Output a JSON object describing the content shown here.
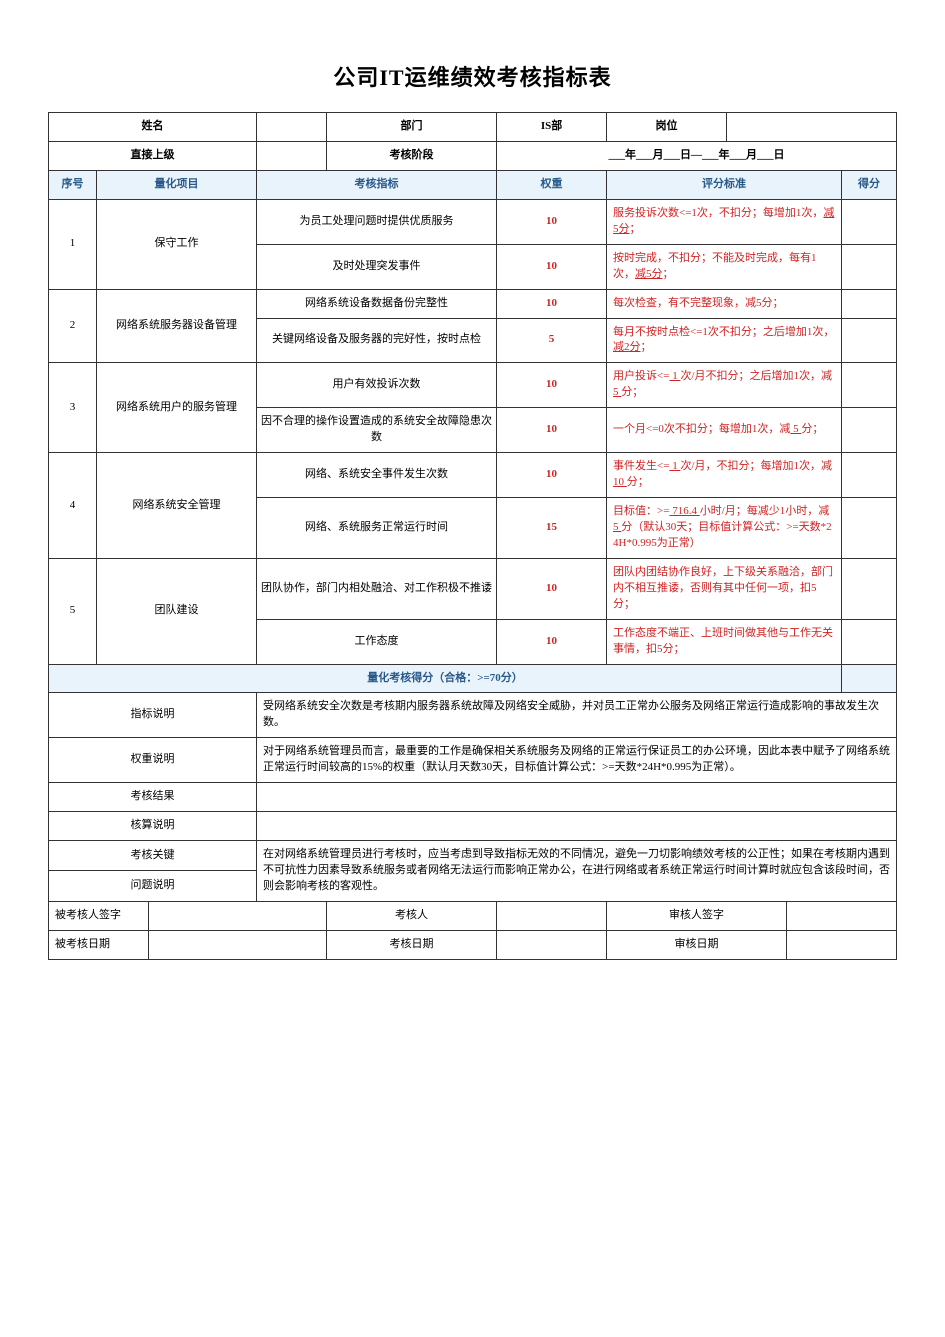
{
  "title": "公司IT运维绩效考核指标表",
  "info": {
    "name_label": "姓名",
    "dept_label": "部门",
    "dept_value": "IS部",
    "post_label": "岗位",
    "supervisor_label": "直接上级",
    "period_label": "考核阶段",
    "period_value": "___年___月___日—___年___月___日"
  },
  "columns": {
    "seq": "序号",
    "project": "量化项目",
    "indicator": "考核指标",
    "weight": "权重",
    "criteria": "评分标准",
    "score": "得分"
  },
  "rows": [
    {
      "seq": "1",
      "project": "保守工作",
      "items": [
        {
          "indicator": "为员工处理问题时提供优质服务",
          "weight": "10",
          "criteria_parts": [
            {
              "t": "服务投诉次数<=1次，不扣分；每增加1次，",
              "red": true
            },
            {
              "t": "减5分",
              "red": true,
              "u": true
            },
            {
              "t": "；",
              "red": true
            }
          ]
        },
        {
          "indicator": "及时处理突发事件",
          "weight": "10",
          "criteria_parts": [
            {
              "t": "按时完成，不扣分；不能及时完成，每有1次，",
              "red": true
            },
            {
              "t": "减5分",
              "red": true,
              "u": true
            },
            {
              "t": "；",
              "red": true
            }
          ]
        }
      ]
    },
    {
      "seq": "2",
      "project": "网络系统服务器设备管理",
      "items": [
        {
          "indicator": "网络系统设备数据备份完整性",
          "weight": "10",
          "criteria_parts": [
            {
              "t": "每次检查，有不完整现象，",
              "red": true
            },
            {
              "t": "减5分",
              "red": true,
              "u": false
            },
            {
              "t": "；",
              "red": true
            }
          ]
        },
        {
          "indicator": "关键网络设备及服务器的完好性，按时点检",
          "weight": "5",
          "criteria_parts": [
            {
              "t": "每月不按时点检<=1次不扣分；之后增加1次，",
              "red": true
            },
            {
              "t": "减2分",
              "red": true,
              "u": true
            },
            {
              "t": "；",
              "red": true
            }
          ]
        }
      ]
    },
    {
      "seq": "3",
      "project": "网络系统用户的服务管理",
      "items": [
        {
          "indicator": "用户有效投诉次数",
          "weight": "10",
          "criteria_parts": [
            {
              "t": "用户投诉<=",
              "red": true
            },
            {
              "t": " 1 ",
              "red": true,
              "u": true
            },
            {
              "t": "次/月不扣分；之后增加1次，减",
              "red": true
            },
            {
              "t": " 5 ",
              "red": true,
              "u": true
            },
            {
              "t": "分；",
              "red": true
            }
          ]
        },
        {
          "indicator": "因不合理的操作设置造成的系统安全故障隐患次数",
          "weight": "10",
          "criteria_parts": [
            {
              "t": "一个月<=0次不扣分；每增加1次，减",
              "red": true
            },
            {
              "t": " 5 ",
              "red": true,
              "u": true
            },
            {
              "t": "分；",
              "red": true
            }
          ]
        }
      ]
    },
    {
      "seq": "4",
      "project": "网络系统安全管理",
      "items": [
        {
          "indicator": "网络、系统安全事件发生次数",
          "weight": "10",
          "criteria_parts": [
            {
              "t": "事件发生<=",
              "red": true
            },
            {
              "t": " 1 ",
              "red": true,
              "u": true
            },
            {
              "t": "次/月，不扣分；每增加1次，减",
              "red": true
            },
            {
              "t": " 10 ",
              "red": true,
              "u": true
            },
            {
              "t": "分；",
              "red": true
            }
          ]
        },
        {
          "indicator": "网络、系统服务正常运行时间",
          "weight": "15",
          "criteria_parts": [
            {
              "t": "目标值：>=",
              "red": true
            },
            {
              "t": " 716.4 ",
              "red": true,
              "u": true
            },
            {
              "t": "小时/月；每减少1小时，减",
              "red": true
            },
            {
              "t": " 5 ",
              "red": true,
              "u": true
            },
            {
              "t": "分（默认30天；目标值计算公式：>=天数*24H*0.995为正常）",
              "red": true
            }
          ]
        }
      ]
    },
    {
      "seq": "5",
      "project": "团队建设",
      "items": [
        {
          "indicator": "团队协作，部门内相处融洽、对工作积极不推诿",
          "weight": "10",
          "criteria_parts": [
            {
              "t": "团队内团结协作良好，上下级关系融洽，部门内不相互推诿，否则有其中任何一项，扣5分；",
              "red": true
            }
          ]
        },
        {
          "indicator": "工作态度",
          "weight": "10",
          "criteria_parts": [
            {
              "t": "工作态度不端正、上班时间做其他与工作无关事情，扣5分；",
              "red": true
            }
          ]
        }
      ]
    }
  ],
  "subtotal": "量化考核得分（合格：>=70分）",
  "desc": {
    "indicator_label": "指标说明",
    "indicator_text": "受网络系统安全次数是考核期内服务器系统故障及网络安全威胁，并对员工正常办公服务及网络正常运行造成影响的事故发生次数。",
    "weight_label": "权重说明",
    "weight_text": "对于网络系统管理员而言，最重要的工作是确保相关系统服务及网络的正常运行保证员工的办公环境，因此本表中赋予了网络系统正常运行时间较高的15%的权重（默认月天数30天，目标值计算公式：>=天数*24H*0.995为正常）。",
    "result_label": "考核结果",
    "calc_label": "核算说明",
    "key_label": "考核关键",
    "issue_label": "问题说明",
    "key_text": "在对网络系统管理员进行考核时，应当考虑到导致指标无效的不同情况，避免一刀切影响绩效考核的公正性；如果在考核期内遇到不可抗性力因素导致系统服务或者网络无法运行而影响正常办公，在进行网络或者系统正常运行时间计算时就应包含该段时间，否则会影响考核的客观性。"
  },
  "sign": {
    "examinee_sign": "被考核人签字",
    "examiner": "考核人",
    "auditor_sign": "审核人签字",
    "examinee_date": "被考核日期",
    "exam_date": "考核日期",
    "audit_date": "审核日期"
  }
}
